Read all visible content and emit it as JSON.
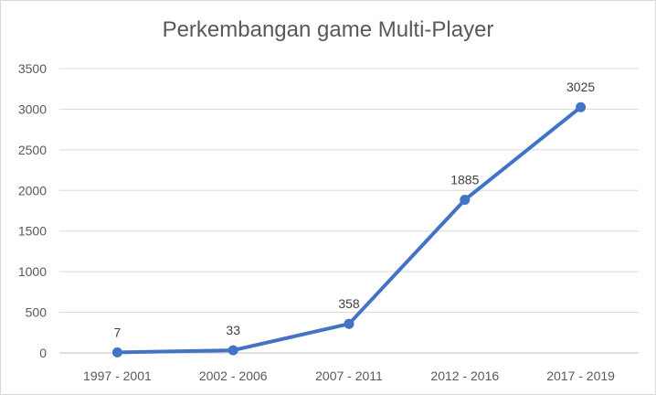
{
  "chart_data": {
    "type": "line",
    "title": "Perkembangan game Multi-Player",
    "categories": [
      "1997 - 2001",
      "2002 - 2006",
      "2007 - 2011",
      "2012 - 2016",
      "2017 - 2019"
    ],
    "series": [
      {
        "values": [
          7,
          33,
          358,
          1885,
          3025
        ]
      }
    ],
    "data_labels": [
      "7",
      "33",
      "358",
      "1885",
      "3025"
    ],
    "ylim": [
      0,
      3500
    ],
    "yticks": [
      0,
      500,
      1000,
      1500,
      2000,
      2500,
      3000,
      3500
    ],
    "ytick_labels": [
      "0",
      "500",
      "1000",
      "1500",
      "2000",
      "2500",
      "3000",
      "3500"
    ],
    "xlabel": "",
    "ylabel": "",
    "grid": true,
    "legend": "none",
    "colors": {
      "line": "#4472c4",
      "grid": "#d9d9d9",
      "axis": "#bfbfbf"
    }
  }
}
